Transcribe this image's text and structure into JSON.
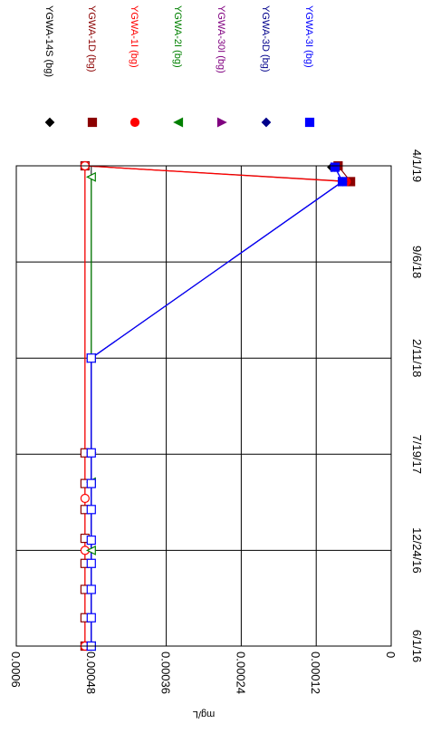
{
  "chart_data": {
    "type": "line",
    "title": "",
    "xlabel": "",
    "ylabel": "mg/L",
    "orientation": "rotated-90-clockwise",
    "grid": true,
    "legend_position": "top",
    "x_axis": {
      "type": "date",
      "range": [
        "2016-06-01",
        "2019-04-01"
      ],
      "tick_values": [
        "2016-06-01",
        "2016-12-24",
        "2017-07-19",
        "2018-02-11",
        "2018-09-06",
        "2019-04-01"
      ],
      "tick_labels": [
        "6/1/16",
        "12/24/16",
        "7/19/17",
        "2/11/18",
        "9/6/18",
        "4/1/19"
      ]
    },
    "y_axis": {
      "range": [
        0,
        0.0006
      ],
      "tick_values": [
        0,
        0.00012,
        0.00024,
        0.00036,
        0.00048,
        0.0006
      ],
      "tick_labels": [
        "0",
        "0.00012",
        "0.00024",
        "0.00036",
        "0.00048",
        "0.0006"
      ]
    },
    "series": [
      {
        "name": "YGWA-14S (bg)",
        "color": "#000000",
        "marker": "diamond",
        "points": [
          {
            "x": "2019-03-29",
            "y": 9.5e-05,
            "nd": false
          }
        ]
      },
      {
        "name": "YGWA-1D (bg)",
        "color": "#8b0000",
        "marker": "square",
        "points": [
          {
            "x": "2016-06-01",
            "y": 0.00049,
            "nd": true
          },
          {
            "x": "2016-08-01",
            "y": 0.00049,
            "nd": true
          },
          {
            "x": "2016-10-01",
            "y": 0.00049,
            "nd": true
          },
          {
            "x": "2016-11-26",
            "y": 0.00049,
            "nd": true
          },
          {
            "x": "2017-01-19",
            "y": 0.00049,
            "nd": true
          },
          {
            "x": "2017-03-22",
            "y": 0.00049,
            "nd": true
          },
          {
            "x": "2017-05-17",
            "y": 0.00049,
            "nd": true
          },
          {
            "x": "2017-07-22",
            "y": 0.00049,
            "nd": true
          },
          {
            "x": "2019-04-01",
            "y": 0.00049,
            "nd": true
          },
          {
            "x": "2019-02-26",
            "y": 6.5e-05,
            "nd": false
          },
          {
            "x": "2019-04-01",
            "y": 8.5e-05,
            "nd": false
          }
        ]
      },
      {
        "name": "YGWA-1I (bg)",
        "color": "#ff0000",
        "marker": "circle",
        "points": [
          {
            "x": "2016-06-01",
            "y": 0.00049,
            "nd": true
          },
          {
            "x": "2016-12-24",
            "y": 0.00049,
            "nd": true
          },
          {
            "x": "2017-04-15",
            "y": 0.00049,
            "nd": true
          },
          {
            "x": "2019-04-01",
            "y": 0.00049,
            "nd": true
          },
          {
            "x": "2019-02-26",
            "y": 7.2e-05,
            "nd": false
          }
        ]
      },
      {
        "name": "YGWA-2I (bg)",
        "color": "#008000",
        "marker": "triangle-left",
        "points": [
          {
            "x": "2016-06-01",
            "y": 0.00048,
            "nd": true
          },
          {
            "x": "2016-12-24",
            "y": 0.00048,
            "nd": true
          },
          {
            "x": "2017-05-20",
            "y": 0.00048,
            "nd": true
          },
          {
            "x": "2018-02-11",
            "y": 0.00048,
            "nd": true
          },
          {
            "x": "2019-03-08",
            "y": 0.00048,
            "nd": true
          }
        ]
      },
      {
        "name": "YGWA-30I (bg)",
        "color": "#800080",
        "marker": "triangle-right",
        "points": [
          {
            "x": "2016-06-01",
            "y": 0.00048,
            "nd": true
          },
          {
            "x": "2017-07-22",
            "y": 0.00048,
            "nd": true
          },
          {
            "x": "2018-02-11",
            "y": 0.00048,
            "nd": true
          },
          {
            "x": "2019-02-26",
            "y": 7.8e-05,
            "nd": false
          }
        ]
      },
      {
        "name": "YGWA-3D (bg)",
        "color": "#00008b",
        "marker": "diamond",
        "points": [
          {
            "x": "2016-06-01",
            "y": 0.00048,
            "nd": true
          },
          {
            "x": "2017-07-22",
            "y": 0.00048,
            "nd": true
          },
          {
            "x": "2018-02-11",
            "y": 0.00048,
            "nd": true
          },
          {
            "x": "2019-02-26",
            "y": 7.8e-05,
            "nd": false
          },
          {
            "x": "2019-03-29",
            "y": 9e-05,
            "nd": false
          }
        ]
      },
      {
        "name": "YGWA-3I (bg)",
        "color": "#0000ff",
        "marker": "square",
        "points": [
          {
            "x": "2016-06-01",
            "y": 0.00048,
            "nd": true
          },
          {
            "x": "2016-08-01",
            "y": 0.00048,
            "nd": true
          },
          {
            "x": "2016-10-01",
            "y": 0.00048,
            "nd": true
          },
          {
            "x": "2016-11-26",
            "y": 0.00048,
            "nd": true
          },
          {
            "x": "2017-01-15",
            "y": 0.00048,
            "nd": true
          },
          {
            "x": "2017-03-22",
            "y": 0.00048,
            "nd": true
          },
          {
            "x": "2017-05-17",
            "y": 0.00048,
            "nd": true
          },
          {
            "x": "2017-07-22",
            "y": 0.00048,
            "nd": true
          },
          {
            "x": "2018-02-11",
            "y": 0.00048,
            "nd": true
          },
          {
            "x": "2019-02-26",
            "y": 7.8e-05,
            "nd": false
          },
          {
            "x": "2019-03-29",
            "y": 9e-05,
            "nd": false
          }
        ]
      }
    ]
  }
}
